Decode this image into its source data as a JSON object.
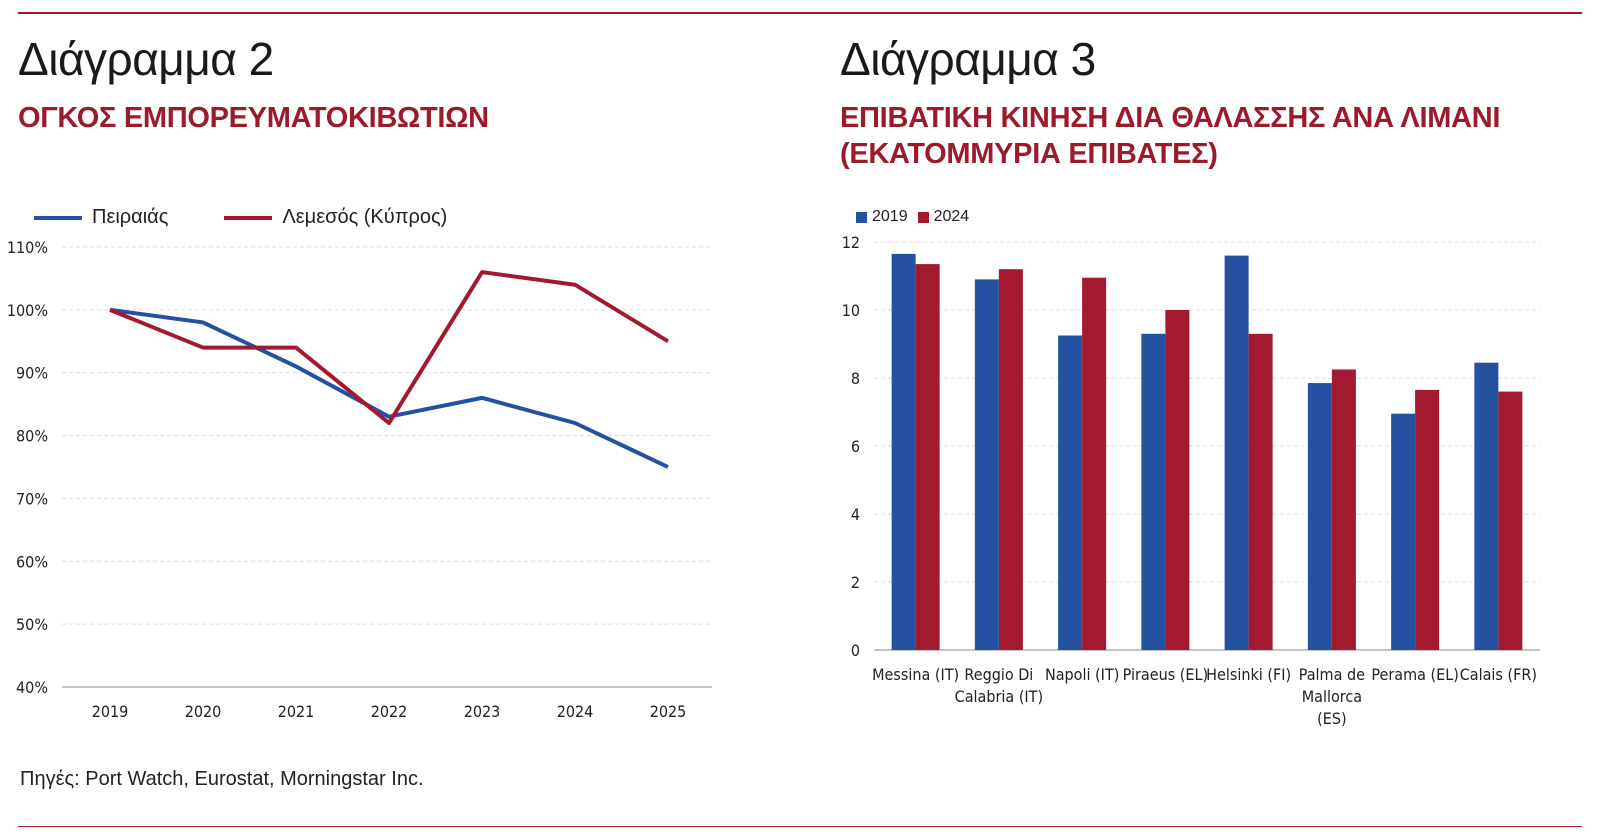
{
  "left": {
    "heading": "Διάγραμμα 2",
    "subtitle": "ΟΓΚΟΣ ΕΜΠΟΡΕΥΜΑΤΟΚΙΒΩΤΙΩΝ"
  },
  "right": {
    "heading": "Διάγραμμα 3",
    "subtitle_line1": "ΕΠΙΒΑΤΙΚΗ ΚΙΝΗΣΗ ΔΙΑ ΘΑΛΑΣΣΗΣ ΑΝΑ ΛΙΜΑΝΙ",
    "subtitle_line2": "(ΕΚΑΤΟΜΜΥΡΙΑ ΕΠΙΒΑΤΕΣ)"
  },
  "source": "Πηγές: Port Watch, Eurostat, Morningstar Inc.",
  "colors": {
    "blue": "#2452a0",
    "red": "#a3192f",
    "accent_rule": "#9b1b2a",
    "grid": "#dcdcdc"
  },
  "chart_data": [
    {
      "type": "line",
      "x": [
        "2019",
        "2020",
        "2021",
        "2022",
        "2023",
        "2024",
        "2025"
      ],
      "ylim": [
        40,
        110
      ],
      "yticks": [
        40,
        50,
        60,
        70,
        80,
        90,
        100,
        110
      ],
      "ytick_labels": [
        "40%",
        "50%",
        "60%",
        "70%",
        "80%",
        "90%",
        "100%",
        "110%"
      ],
      "grid": true,
      "legend_position": "top-left",
      "series": [
        {
          "name": "Πειραιάς",
          "color": "#2452a0",
          "values": [
            100,
            98,
            91,
            83,
            86,
            82,
            75
          ]
        },
        {
          "name": "Λεμεσός (Κύπρος)",
          "color": "#a3192f",
          "values": [
            100,
            94,
            94,
            82,
            106,
            104,
            95
          ]
        }
      ]
    },
    {
      "type": "bar",
      "categories": [
        [
          "Messina (IT)"
        ],
        [
          "Reggio Di",
          "Calabria (IT)"
        ],
        [
          "Napoli (IT)"
        ],
        [
          "Piraeus (EL)"
        ],
        [
          "Helsinki (FI)"
        ],
        [
          "Palma de",
          "Mallorca",
          "(ES)"
        ],
        [
          "Perama (EL)"
        ],
        [
          "Calais (FR)"
        ]
      ],
      "ylim": [
        0,
        12
      ],
      "yticks": [
        0,
        2,
        4,
        6,
        8,
        10,
        12
      ],
      "grid": true,
      "legend_position": "top-left",
      "series": [
        {
          "name": "2019",
          "color": "#2452a0",
          "values": [
            11.65,
            10.9,
            9.25,
            9.3,
            11.6,
            7.85,
            6.95,
            8.45
          ]
        },
        {
          "name": "2024",
          "color": "#a3192f",
          "values": [
            11.35,
            11.2,
            10.95,
            10.0,
            9.3,
            8.25,
            7.65,
            7.6
          ]
        }
      ]
    }
  ]
}
